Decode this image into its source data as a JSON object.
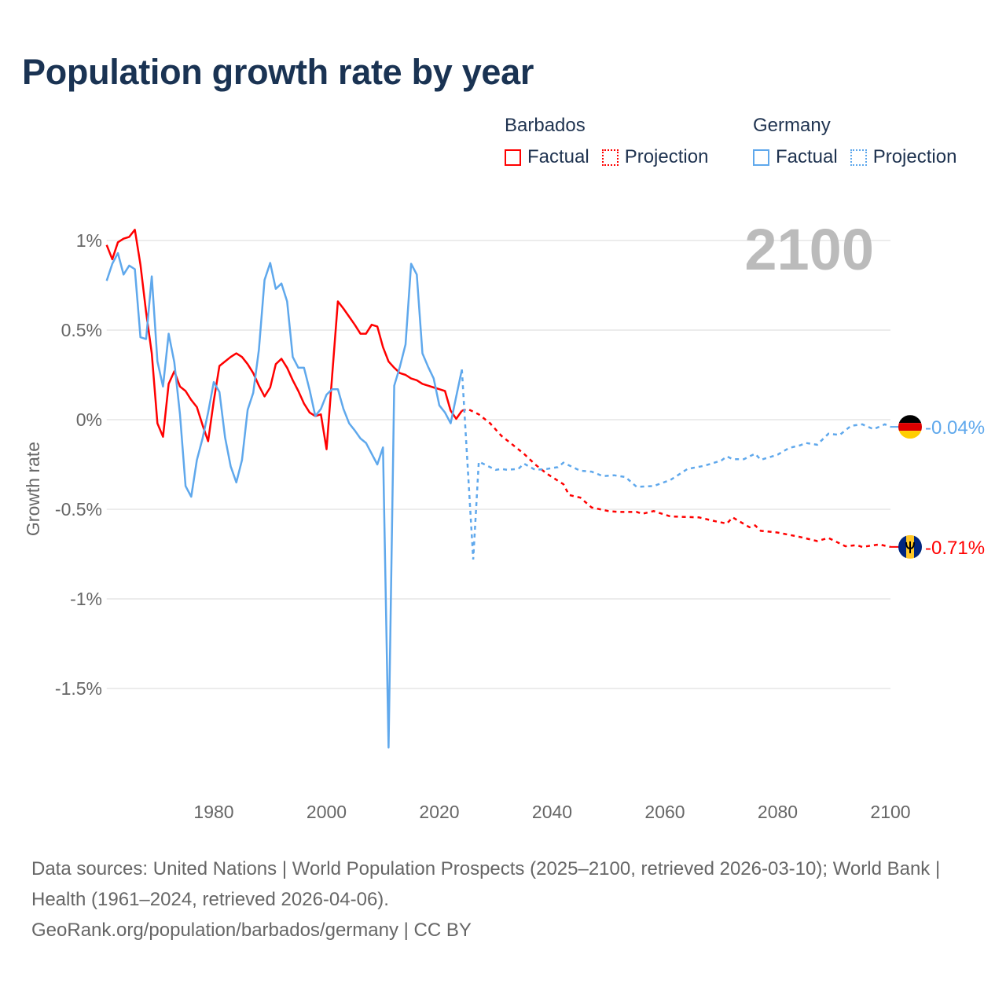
{
  "colors": {
    "barbados": "#ff0000",
    "germany": "#5fa8ec",
    "title": "#1a3353",
    "grid": "#e6e6e6",
    "year_watermark": "#bbbbbb"
  },
  "chart_data": {
    "type": "line",
    "title": "Population growth rate by year",
    "xlabel": "",
    "ylabel": "Growth rate",
    "xlim": [
      1961,
      2100
    ],
    "ylim": [
      -1.95,
      1.12
    ],
    "x_ticks": [
      1980,
      2000,
      2020,
      2040,
      2060,
      2080,
      2100
    ],
    "x_tick_labels": [
      "1980",
      "2000",
      "2020",
      "2040",
      "2060",
      "2080",
      "2100"
    ],
    "y_ticks": [
      1,
      0.5,
      0,
      -0.5,
      -1,
      -1.5
    ],
    "y_tick_labels": [
      "1%",
      "0.5%",
      "0%",
      "-0.5%",
      "-1%",
      "-1.5%"
    ],
    "grid": true,
    "current_year_label": "2100",
    "legend": {
      "placement": "top-right",
      "groups": [
        {
          "name": "Barbados",
          "items": [
            "Factual",
            "Projection"
          ]
        },
        {
          "name": "Germany",
          "items": [
            "Factual",
            "Projection"
          ]
        }
      ]
    },
    "series": [
      {
        "name": "Barbados",
        "color": "#ff0000",
        "end_label": "-0.71%",
        "flag": "barbados-flag",
        "factual": {
          "start_year": 1961,
          "values": [
            0.975,
            0.895,
            0.99,
            1.01,
            1.02,
            1.06,
            0.865,
            0.6,
            0.37,
            -0.02,
            -0.095,
            0.2,
            0.27,
            0.185,
            0.16,
            0.11,
            0.07,
            -0.03,
            -0.12,
            0.105,
            0.3,
            0.325,
            0.35,
            0.37,
            0.35,
            0.31,
            0.26,
            0.19,
            0.13,
            0.18,
            0.31,
            0.34,
            0.29,
            0.22,
            0.16,
            0.09,
            0.04,
            0.02,
            0.03,
            -0.165,
            0.25,
            0.66,
            0.62,
            0.575,
            0.53,
            0.48,
            0.48,
            0.53,
            0.52,
            0.405,
            0.325,
            0.29,
            0.26,
            0.25,
            0.23,
            0.22,
            0.2,
            0.19,
            0.18,
            0.17,
            0.16,
            0.05,
            0.005,
            0.05
          ]
        },
        "projection": [
          [
            2024,
            0.05
          ],
          [
            2025,
            0.06
          ],
          [
            2027,
            0.03
          ],
          [
            2029,
            -0.02
          ],
          [
            2031,
            -0.09
          ],
          [
            2033,
            -0.14
          ],
          [
            2035,
            -0.19
          ],
          [
            2037,
            -0.25
          ],
          [
            2039,
            -0.3
          ],
          [
            2042,
            -0.36
          ],
          [
            2043,
            -0.42
          ],
          [
            2045,
            -0.435
          ],
          [
            2047,
            -0.49
          ],
          [
            2050,
            -0.51
          ],
          [
            2052,
            -0.515
          ],
          [
            2055,
            -0.515
          ],
          [
            2056,
            -0.525
          ],
          [
            2058,
            -0.51
          ],
          [
            2061,
            -0.54
          ],
          [
            2066,
            -0.545
          ],
          [
            2069,
            -0.567
          ],
          [
            2071,
            -0.58
          ],
          [
            2072,
            -0.545
          ],
          [
            2075,
            -0.6
          ],
          [
            2076,
            -0.59
          ],
          [
            2077,
            -0.62
          ],
          [
            2080,
            -0.63
          ],
          [
            2084,
            -0.655
          ],
          [
            2087,
            -0.677
          ],
          [
            2089,
            -0.66
          ],
          [
            2092,
            -0.706
          ],
          [
            2094,
            -0.7
          ],
          [
            2095,
            -0.71
          ],
          [
            2098,
            -0.696
          ],
          [
            2100,
            -0.71
          ]
        ]
      },
      {
        "name": "Germany",
        "color": "#5fa8ec",
        "end_label": "-0.04%",
        "flag": "germany-flag",
        "factual": {
          "start_year": 1961,
          "values": [
            0.775,
            0.87,
            0.93,
            0.81,
            0.86,
            0.84,
            0.46,
            0.45,
            0.8,
            0.325,
            0.185,
            0.48,
            0.32,
            0.03,
            -0.37,
            -0.43,
            -0.225,
            -0.105,
            0.04,
            0.21,
            0.155,
            -0.1,
            -0.26,
            -0.35,
            -0.225,
            0.055,
            0.15,
            0.39,
            0.78,
            0.875,
            0.73,
            0.76,
            0.66,
            0.35,
            0.29,
            0.29,
            0.165,
            0.02,
            0.06,
            0.14,
            0.17,
            0.17,
            0.06,
            -0.02,
            -0.06,
            -0.105,
            -0.13,
            -0.19,
            -0.25,
            -0.155,
            -1.83,
            0.19,
            0.295,
            0.42,
            0.87,
            0.81,
            0.37,
            0.295,
            0.23,
            0.08,
            0.04,
            -0.02,
            0.13,
            0.28
          ]
        },
        "projection": [
          [
            2024,
            0.28
          ],
          [
            2026,
            -0.78
          ],
          [
            2027,
            -0.234
          ],
          [
            2030,
            -0.28
          ],
          [
            2031,
            -0.275
          ],
          [
            2032,
            -0.28
          ],
          [
            2034,
            -0.275
          ],
          [
            2035,
            -0.245
          ],
          [
            2037,
            -0.28
          ],
          [
            2039,
            -0.275
          ],
          [
            2041,
            -0.265
          ],
          [
            2042,
            -0.24
          ],
          [
            2045,
            -0.285
          ],
          [
            2047,
            -0.29
          ],
          [
            2049,
            -0.315
          ],
          [
            2051,
            -0.31
          ],
          [
            2053,
            -0.32
          ],
          [
            2055,
            -0.375
          ],
          [
            2058,
            -0.37
          ],
          [
            2061,
            -0.336
          ],
          [
            2064,
            -0.275
          ],
          [
            2067,
            -0.257
          ],
          [
            2070,
            -0.228
          ],
          [
            2071,
            -0.205
          ],
          [
            2072,
            -0.22
          ],
          [
            2074,
            -0.22
          ],
          [
            2076,
            -0.19
          ],
          [
            2077,
            -0.224
          ],
          [
            2080,
            -0.195
          ],
          [
            2082,
            -0.158
          ],
          [
            2084,
            -0.143
          ],
          [
            2085,
            -0.13
          ],
          [
            2087,
            -0.14
          ],
          [
            2089,
            -0.078
          ],
          [
            2091,
            -0.085
          ],
          [
            2093,
            -0.034
          ],
          [
            2095,
            -0.026
          ],
          [
            2097,
            -0.053
          ],
          [
            2099,
            -0.026
          ],
          [
            2100,
            -0.04
          ]
        ]
      }
    ]
  },
  "legend": {
    "barbados": {
      "name": "Barbados",
      "factual": "Factual",
      "projection": "Projection"
    },
    "germany": {
      "name": "Germany",
      "factual": "Factual",
      "projection": "Projection"
    }
  },
  "footer": {
    "sources": "Data sources: United Nations | World Population Prospects (2025–2100, retrieved 2026-03-10); World Bank | Health (1961–2024, retrieved 2026-04-06).",
    "credit": "GeoRank.org/population/barbados/germany | CC BY"
  }
}
